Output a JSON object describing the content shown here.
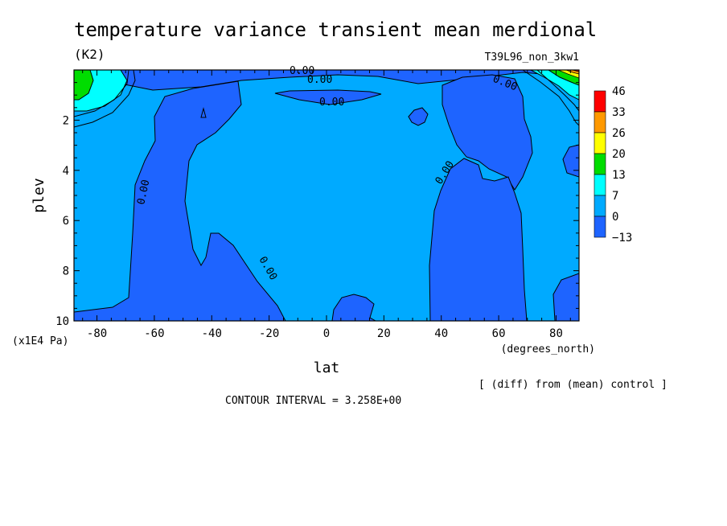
{
  "chart_data": {
    "type": "contour",
    "title": "temperature variance transient mean merdional",
    "units": "(K2)",
    "run_label": "T39L96_non_3kw1",
    "xlabel": "lat",
    "x_units": "(degrees_north)",
    "ylabel": "plev",
    "y_units": "(x1E4 Pa)",
    "xlim": [
      -88,
      88
    ],
    "ylim": [
      10,
      0
    ],
    "x_ticks": [
      -80,
      -60,
      -40,
      -20,
      0,
      20,
      40,
      60,
      80
    ],
    "y_ticks": [
      2,
      4,
      6,
      8,
      10
    ],
    "x_tick_labels": [
      "-80",
      "-60",
      "-40",
      "-20",
      "0",
      "20",
      "40",
      "60",
      "80"
    ],
    "y_tick_labels": [
      "2",
      "4",
      "6",
      "8",
      "10"
    ],
    "contour_levels": [
      -13,
      0,
      7,
      13,
      20,
      26,
      33,
      46
    ],
    "legend_labels": [
      "46",
      "33",
      "26",
      "20",
      "13",
      "7",
      "0",
      "−13"
    ],
    "legend_colors": [
      "#ff0000",
      "#ff9900",
      "#ffff00",
      "#00dd00",
      "#00ffff",
      "#00aaff",
      "#1e64ff"
    ],
    "contour_labels": [
      "0.00",
      "0.00",
      "0.00",
      "0.00",
      "0.00",
      "0.00",
      "0.00"
    ],
    "note": "[ (diff) from (mean) control ]",
    "contour_interval": "CONTOUR INTERVAL = 3.258E+00",
    "grid": false
  }
}
